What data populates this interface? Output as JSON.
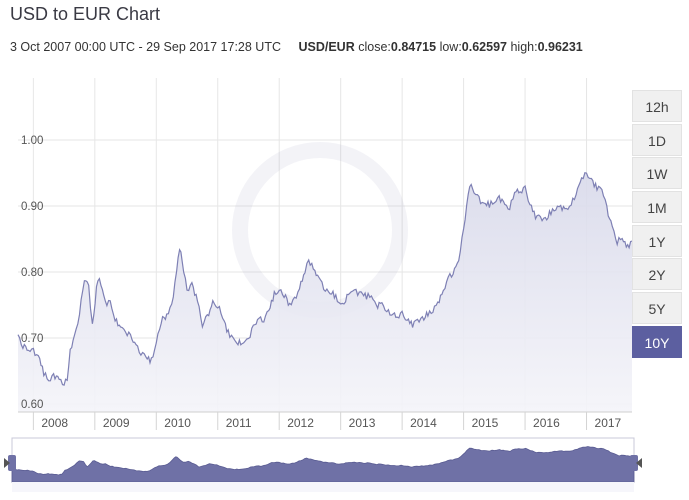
{
  "header": {
    "title": "USD to EUR Chart",
    "date_range": "3 Oct 2007 00:00 UTC - 29 Sep 2017 17:28 UTC",
    "pair": "USD/EUR",
    "close_label": "close:",
    "close_value": "0.84715",
    "low_label": "low:",
    "low_value": "0.62597",
    "high_label": "high:",
    "high_value": "0.96231"
  },
  "range_buttons": [
    {
      "label": "12h",
      "active": false
    },
    {
      "label": "1D",
      "active": false
    },
    {
      "label": "1W",
      "active": false
    },
    {
      "label": "1M",
      "active": false
    },
    {
      "label": "1Y",
      "active": false
    },
    {
      "label": "2Y",
      "active": false
    },
    {
      "label": "5Y",
      "active": false
    },
    {
      "label": "10Y",
      "active": true
    }
  ],
  "colors": {
    "line": "#7e80b4",
    "fill": "#e8e8f1",
    "navigator_fill": "#6f71a6",
    "active_button": "#5c5fa0"
  },
  "chart_data": {
    "type": "area",
    "title": "USD to EUR Chart",
    "series": [
      {
        "name": "USD/EUR",
        "x": [
          2007.75,
          2007.83,
          2007.92,
          2008.0,
          2008.08,
          2008.17,
          2008.25,
          2008.33,
          2008.42,
          2008.5,
          2008.55,
          2008.6,
          2008.67,
          2008.75,
          2008.83,
          2008.9,
          2008.96,
          2009.05,
          2009.1,
          2009.17,
          2009.25,
          2009.33,
          2009.42,
          2009.5,
          2009.58,
          2009.67,
          2009.75,
          2009.83,
          2009.92,
          2010.0,
          2010.08,
          2010.17,
          2010.25,
          2010.33,
          2010.38,
          2010.42,
          2010.5,
          2010.58,
          2010.67,
          2010.75,
          2010.83,
          2010.92,
          2011.0,
          2011.08,
          2011.17,
          2011.25,
          2011.33,
          2011.42,
          2011.5,
          2011.58,
          2011.67,
          2011.75,
          2011.83,
          2011.92,
          2012.0,
          2012.08,
          2012.17,
          2012.25,
          2012.33,
          2012.42,
          2012.48,
          2012.58,
          2012.67,
          2012.75,
          2012.83,
          2012.92,
          2013.0,
          2013.08,
          2013.17,
          2013.25,
          2013.33,
          2013.42,
          2013.5,
          2013.58,
          2013.67,
          2013.75,
          2013.83,
          2013.92,
          2014.0,
          2014.08,
          2014.17,
          2014.25,
          2014.33,
          2014.42,
          2014.5,
          2014.58,
          2014.67,
          2014.75,
          2014.83,
          2014.92,
          2015.0,
          2015.05,
          2015.1,
          2015.17,
          2015.25,
          2015.33,
          2015.42,
          2015.5,
          2015.58,
          2015.67,
          2015.75,
          2015.83,
          2015.92,
          2016.0,
          2016.08,
          2016.17,
          2016.25,
          2016.33,
          2016.42,
          2016.5,
          2016.58,
          2016.67,
          2016.75,
          2016.83,
          2016.92,
          2017.0,
          2017.08,
          2017.17,
          2017.25,
          2017.33,
          2017.42,
          2017.5,
          2017.58,
          2017.67,
          2017.74
        ],
        "values": [
          0.705,
          0.69,
          0.68,
          0.68,
          0.675,
          0.645,
          0.635,
          0.645,
          0.635,
          0.63,
          0.64,
          0.68,
          0.7,
          0.74,
          0.79,
          0.775,
          0.72,
          0.79,
          0.78,
          0.755,
          0.755,
          0.725,
          0.72,
          0.71,
          0.7,
          0.69,
          0.68,
          0.67,
          0.665,
          0.695,
          0.725,
          0.735,
          0.75,
          0.8,
          0.835,
          0.82,
          0.77,
          0.78,
          0.76,
          0.72,
          0.73,
          0.755,
          0.75,
          0.73,
          0.71,
          0.7,
          0.69,
          0.695,
          0.7,
          0.715,
          0.73,
          0.73,
          0.74,
          0.765,
          0.775,
          0.765,
          0.75,
          0.76,
          0.775,
          0.8,
          0.82,
          0.8,
          0.785,
          0.775,
          0.77,
          0.76,
          0.75,
          0.76,
          0.77,
          0.77,
          0.77,
          0.76,
          0.765,
          0.75,
          0.75,
          0.74,
          0.74,
          0.73,
          0.735,
          0.73,
          0.72,
          0.725,
          0.73,
          0.735,
          0.74,
          0.755,
          0.77,
          0.79,
          0.8,
          0.82,
          0.86,
          0.9,
          0.935,
          0.92,
          0.91,
          0.905,
          0.9,
          0.905,
          0.915,
          0.9,
          0.895,
          0.925,
          0.92,
          0.925,
          0.905,
          0.885,
          0.88,
          0.88,
          0.89,
          0.895,
          0.9,
          0.895,
          0.9,
          0.92,
          0.945,
          0.945,
          0.94,
          0.93,
          0.925,
          0.895,
          0.87,
          0.845,
          0.85,
          0.84,
          0.847
        ]
      }
    ],
    "xlabel": "",
    "ylabel": "",
    "xlim": [
      2007.75,
      2017.74
    ],
    "ylim": [
      0.6,
      1.0
    ],
    "y_ticks": [
      "0.60",
      "0.70",
      "0.80",
      "0.90",
      "1.00"
    ],
    "x_ticks": [
      "2008",
      "2009",
      "2010",
      "2011",
      "2012",
      "2013",
      "2014",
      "2015",
      "2016",
      "2017"
    ],
    "grid": true,
    "navigator": true
  }
}
